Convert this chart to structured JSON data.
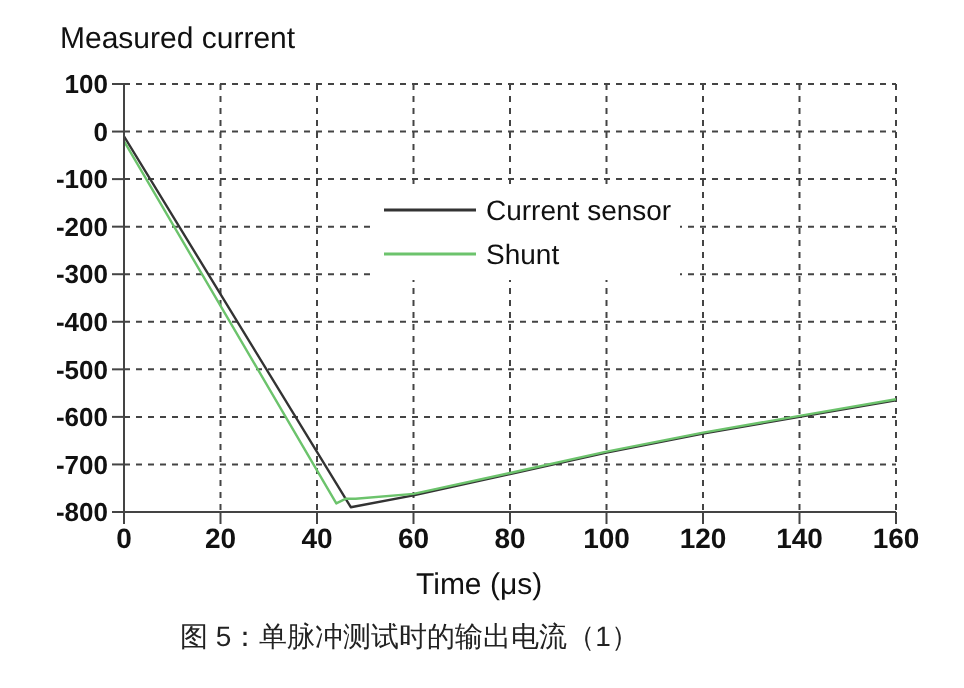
{
  "chart_data": {
    "type": "line",
    "title": "Measured current",
    "xlabel": "Time (μs)",
    "annotations": [
      "图 5：单脉冲测试时的输出电流（1）"
    ],
    "xlim": [
      0,
      160
    ],
    "xticks": [
      0,
      20,
      40,
      60,
      80,
      100,
      120,
      140,
      160
    ],
    "ylim": [
      -800,
      100
    ],
    "yticks": [
      100,
      0,
      -100,
      -200,
      -300,
      -400,
      -500,
      -600,
      -700,
      -800
    ],
    "grid": true,
    "legend": "top right",
    "marker": "none",
    "line_style": "solid",
    "series": [
      {
        "name": "Current sensor",
        "color": "#333333",
        "x": [
          0,
          47,
          60,
          80,
          100,
          120,
          140,
          160
        ],
        "values": [
          -10,
          -790,
          -765,
          -720,
          -675,
          -635,
          -600,
          -565
        ]
      },
      {
        "name": "Shunt",
        "color": "#6cc36c",
        "x": [
          0,
          44,
          46,
          48,
          60,
          80,
          100,
          120,
          140,
          160
        ],
        "values": [
          -20,
          -782,
          -772,
          -772,
          -762,
          -718,
          -673,
          -633,
          -598,
          -563
        ]
      }
    ]
  }
}
